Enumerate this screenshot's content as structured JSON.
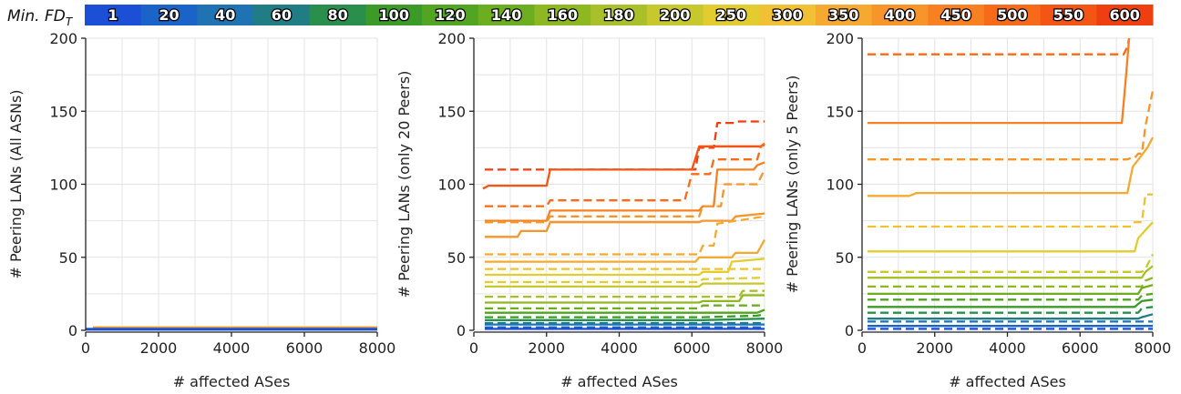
{
  "legend": {
    "title": "Min. FD",
    "title_sub": "T",
    "entries": [
      {
        "label": "1",
        "color": "#1a4fd6"
      },
      {
        "label": "20",
        "color": "#1a63c8"
      },
      {
        "label": "40",
        "color": "#1f73b2"
      },
      {
        "label": "60",
        "color": "#217d84"
      },
      {
        "label": "80",
        "color": "#2a8f4c"
      },
      {
        "label": "100",
        "color": "#3c9a28"
      },
      {
        "label": "120",
        "color": "#52a522"
      },
      {
        "label": "140",
        "color": "#6cae20"
      },
      {
        "label": "160",
        "color": "#8db822"
      },
      {
        "label": "180",
        "color": "#a9c02a"
      },
      {
        "label": "200",
        "color": "#c6c82e"
      },
      {
        "label": "250",
        "color": "#e2cc30"
      },
      {
        "label": "300",
        "color": "#f1c034"
      },
      {
        "label": "350",
        "color": "#f5a931"
      },
      {
        "label": "400",
        "color": "#f7952b"
      },
      {
        "label": "450",
        "color": "#f78022"
      },
      {
        "label": "500",
        "color": "#f66a1a"
      },
      {
        "label": "550",
        "color": "#f45514"
      },
      {
        "label": "600",
        "color": "#ef3f10"
      }
    ]
  },
  "chart_data": [
    {
      "type": "line",
      "xlabel": "# affected ASes",
      "ylabel": "# Peering LANs (All ASNs)",
      "xlim": [
        0,
        8000
      ],
      "ylim": [
        0,
        200
      ],
      "xticks": [
        0,
        2000,
        4000,
        6000,
        8000
      ],
      "yticks": [
        0,
        50,
        100,
        150,
        200
      ],
      "grid": true,
      "series": [
        {
          "color": "#f7952b",
          "dash": false,
          "x": [
            200,
            8000
          ],
          "y": [
            2,
            2
          ]
        },
        {
          "color": "#1a63c8",
          "dash": false,
          "x": [
            0,
            8000
          ],
          "y": [
            1,
            1
          ]
        },
        {
          "color": "#1a4fd6",
          "dash": false,
          "x": [
            0,
            8000
          ],
          "y": [
            0.5,
            0.5
          ]
        }
      ]
    },
    {
      "type": "line",
      "xlabel": "# affected ASes",
      "ylabel": "# Peering LANs (only 20 Peers)",
      "xlim": [
        0,
        8000
      ],
      "ylim": [
        0,
        200
      ],
      "xticks": [
        0,
        2000,
        4000,
        6000,
        8000
      ],
      "yticks": [
        0,
        50,
        100,
        150,
        200
      ],
      "grid": true,
      "series": [
        {
          "color": "#ef3f10",
          "dash": true,
          "x": [
            300,
            2000,
            2100,
            6100,
            6200,
            6600,
            6700,
            7200,
            7300,
            8000
          ],
          "y": [
            110,
            110,
            110,
            110,
            125,
            125,
            142,
            142,
            143,
            143
          ]
        },
        {
          "color": "#f45514",
          "dash": false,
          "x": [
            250,
            400,
            2000,
            2100,
            6000,
            6200,
            7900,
            8000
          ],
          "y": [
            97,
            99,
            99,
            110,
            110,
            126,
            126,
            127
          ]
        },
        {
          "color": "#f66a1a",
          "dash": true,
          "x": [
            300,
            2000,
            2100,
            5800,
            6000,
            6500,
            6600,
            7800,
            7900,
            8000
          ],
          "y": [
            85,
            85,
            89,
            89,
            107,
            107,
            117,
            117,
            126,
            128
          ]
        },
        {
          "color": "#f78022",
          "dash": false,
          "x": [
            300,
            2000,
            2100,
            6200,
            6300,
            6600,
            6700,
            7700,
            7800,
            8000
          ],
          "y": [
            75,
            75,
            82,
            82,
            85,
            85,
            110,
            110,
            113,
            115
          ]
        },
        {
          "color": "#f7952b",
          "dash": true,
          "x": [
            300,
            2000,
            2100,
            6200,
            6300,
            6800,
            6900,
            7800,
            8000
          ],
          "y": [
            74,
            74,
            78,
            78,
            85,
            85,
            100,
            100,
            110
          ]
        },
        {
          "color": "#f7952b",
          "dash": false,
          "x": [
            300,
            1200,
            1300,
            2000,
            2100,
            6200,
            6300,
            7100,
            7200,
            8000
          ],
          "y": [
            64,
            64,
            68,
            68,
            74,
            74,
            75,
            75,
            78,
            80
          ]
        },
        {
          "color": "#f5a931",
          "dash": true,
          "x": [
            300,
            6200,
            6300,
            6600,
            6700,
            8000
          ],
          "y": [
            52,
            52,
            58,
            58,
            73,
            78
          ]
        },
        {
          "color": "#f5a931",
          "dash": false,
          "x": [
            300,
            6100,
            6200,
            7100,
            7200,
            7800,
            8000
          ],
          "y": [
            47,
            47,
            50,
            50,
            53,
            53,
            62
          ]
        },
        {
          "color": "#f1c034",
          "dash": true,
          "x": [
            300,
            6200,
            6300,
            8000
          ],
          "y": [
            42,
            42,
            42,
            42
          ]
        },
        {
          "color": "#e2cc30",
          "dash": false,
          "x": [
            300,
            6200,
            6300,
            7000,
            7100,
            8000
          ],
          "y": [
            38,
            38,
            40,
            40,
            47,
            49
          ]
        },
        {
          "color": "#e2cc30",
          "dash": true,
          "x": [
            300,
            6200,
            6300,
            8000
          ],
          "y": [
            33,
            33,
            35,
            36
          ]
        },
        {
          "color": "#c6c82e",
          "dash": false,
          "x": [
            300,
            6200,
            6300,
            8000
          ],
          "y": [
            30,
            30,
            32,
            32
          ]
        },
        {
          "color": "#a9c02a",
          "dash": true,
          "x": [
            300,
            6200,
            6300,
            7300,
            7400,
            8000
          ],
          "y": [
            23,
            23,
            23,
            23,
            27,
            27
          ]
        },
        {
          "color": "#8db822",
          "dash": false,
          "x": [
            300,
            6200,
            6300,
            7300,
            7400,
            8000
          ],
          "y": [
            19,
            19,
            20,
            20,
            24,
            24
          ]
        },
        {
          "color": "#6cae20",
          "dash": true,
          "x": [
            300,
            6200,
            6300,
            8000
          ],
          "y": [
            15,
            15,
            17,
            17
          ]
        },
        {
          "color": "#52a522",
          "dash": false,
          "x": [
            300,
            6200,
            6300,
            7800,
            8000
          ],
          "y": [
            12,
            12,
            12,
            12,
            14
          ]
        },
        {
          "color": "#3c9a28",
          "dash": true,
          "x": [
            300,
            6200,
            6300,
            7800,
            8000
          ],
          "y": [
            9,
            9,
            9,
            10,
            11
          ]
        },
        {
          "color": "#2a8f4c",
          "dash": false,
          "x": [
            300,
            6200,
            6300,
            8000
          ],
          "y": [
            7,
            7,
            7,
            8
          ]
        },
        {
          "color": "#217d84",
          "dash": true,
          "x": [
            300,
            8000
          ],
          "y": [
            5,
            5
          ]
        },
        {
          "color": "#1f73b2",
          "dash": false,
          "x": [
            300,
            8000
          ],
          "y": [
            4,
            4
          ]
        },
        {
          "color": "#1a63c8",
          "dash": true,
          "x": [
            300,
            8000
          ],
          "y": [
            2,
            2
          ]
        },
        {
          "color": "#1a4fd6",
          "dash": false,
          "x": [
            300,
            8000
          ],
          "y": [
            1,
            1
          ]
        }
      ]
    },
    {
      "type": "line",
      "xlabel": "# affected ASes",
      "ylabel": "# Peering LANs (only 5 Peers)",
      "xlim": [
        0,
        8000
      ],
      "ylim": [
        0,
        200
      ],
      "xticks": [
        0,
        2000,
        4000,
        6000,
        8000
      ],
      "yticks": [
        0,
        50,
        100,
        150,
        200
      ],
      "grid": true,
      "series": [
        {
          "color": "#f66a1a",
          "dash": true,
          "x": [
            150,
            7200,
            7300,
            7350
          ],
          "y": [
            189,
            189,
            194,
            200
          ]
        },
        {
          "color": "#f78022",
          "dash": false,
          "x": [
            150,
            7150,
            7250,
            7350
          ],
          "y": [
            142,
            142,
            170,
            200
          ]
        },
        {
          "color": "#f7952b",
          "dash": true,
          "x": [
            150,
            7300,
            7400,
            7500,
            7600,
            7700,
            7800,
            8000
          ],
          "y": [
            117,
            117,
            118,
            118,
            121,
            121,
            140,
            164
          ]
        },
        {
          "color": "#f5a931",
          "dash": false,
          "x": [
            150,
            1300,
            1500,
            7300,
            7450,
            7700,
            7850,
            8000
          ],
          "y": [
            92,
            92,
            94,
            94,
            112,
            120,
            125,
            132
          ]
        },
        {
          "color": "#f1c034",
          "dash": true,
          "x": [
            150,
            7400,
            7500,
            7700,
            7800,
            8000
          ],
          "y": [
            71,
            71,
            74,
            74,
            93,
            93
          ]
        },
        {
          "color": "#e2cc30",
          "dash": false,
          "x": [
            150,
            7500,
            7600,
            7850,
            8000
          ],
          "y": [
            54,
            54,
            63,
            70,
            74
          ]
        },
        {
          "color": "#c6c82e",
          "dash": true,
          "x": [
            150,
            7700,
            7800,
            8000
          ],
          "y": [
            40,
            40,
            42,
            52
          ]
        },
        {
          "color": "#a9c02a",
          "dash": false,
          "x": [
            150,
            7700,
            7800,
            8000
          ],
          "y": [
            36,
            36,
            40,
            44
          ]
        },
        {
          "color": "#8db822",
          "dash": true,
          "x": [
            150,
            7700,
            7800,
            8000
          ],
          "y": [
            30,
            30,
            34,
            36
          ]
        },
        {
          "color": "#6cae20",
          "dash": false,
          "x": [
            150,
            7600,
            7700,
            8000
          ],
          "y": [
            25,
            25,
            29,
            31
          ]
        },
        {
          "color": "#52a522",
          "dash": true,
          "x": [
            150,
            7600,
            7700,
            8000
          ],
          "y": [
            21,
            21,
            24,
            25
          ]
        },
        {
          "color": "#3c9a28",
          "dash": false,
          "x": [
            150,
            7500,
            7700,
            8000
          ],
          "y": [
            16,
            16,
            20,
            21
          ]
        },
        {
          "color": "#2a8f4c",
          "dash": true,
          "x": [
            150,
            7600,
            7700,
            8000
          ],
          "y": [
            12,
            12,
            15,
            16
          ]
        },
        {
          "color": "#217d84",
          "dash": false,
          "x": [
            150,
            7600,
            7700,
            8000
          ],
          "y": [
            8,
            8,
            9,
            11
          ]
        },
        {
          "color": "#1f73b2",
          "dash": true,
          "x": [
            150,
            8000
          ],
          "y": [
            6,
            6
          ]
        },
        {
          "color": "#1a63c8",
          "dash": false,
          "x": [
            150,
            8000
          ],
          "y": [
            3,
            3
          ]
        },
        {
          "color": "#1a4fd6",
          "dash": true,
          "x": [
            150,
            8000
          ],
          "y": [
            1,
            1
          ]
        }
      ]
    }
  ]
}
